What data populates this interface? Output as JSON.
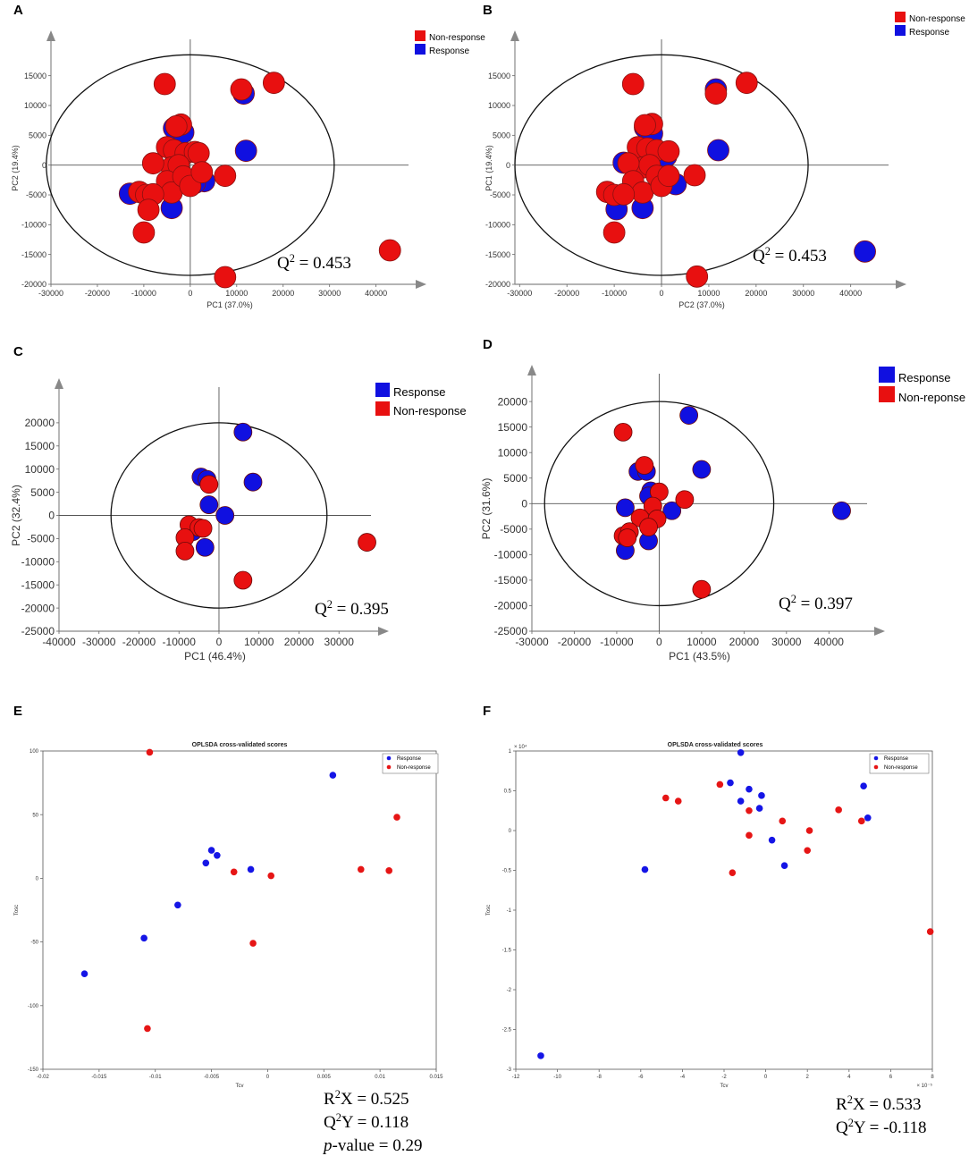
{
  "figure": {
    "panel_labels": [
      "A",
      "B",
      "C",
      "D",
      "E",
      "F"
    ]
  },
  "chart_data": [
    {
      "panel": "A",
      "type": "scatter",
      "title": "",
      "xlabel": "PC1 (37.0%)",
      "ylabel": "PC2 (19.4%)",
      "xlim": [
        -30000,
        47000
      ],
      "ylim": [
        -20000,
        19000
      ],
      "xticks": [
        -30000,
        -20000,
        -10000,
        0,
        10000,
        20000,
        30000,
        40000
      ],
      "yticks": [
        -20000,
        -15000,
        -10000,
        -5000,
        0,
        5000,
        10000,
        15000
      ],
      "tick_labels_x": [
        "-30000",
        "-20000",
        "-10000",
        "0",
        "10000",
        "20000",
        "30000",
        "40000"
      ],
      "tick_labels_y": [
        "-20000",
        "-15000",
        "-10000",
        "-5000",
        "0",
        "5000",
        "10000",
        "15000"
      ],
      "ellipse": {
        "rx": 31000,
        "ry": 18500
      },
      "legend": {
        "position": "top-right",
        "order": [
          "Non-response",
          "Response"
        ],
        "labels": [
          "Non-response",
          "Response"
        ]
      },
      "annotation": "Q² = 0.453",
      "series": [
        {
          "name": "Response",
          "color": "#1010e0",
          "points": [
            [
              11500,
              12000
            ],
            [
              12000,
              2400
            ],
            [
              -3500,
              6200
            ],
            [
              -1500,
              5500
            ],
            [
              -2500,
              -300
            ],
            [
              -4000,
              -7200
            ],
            [
              3000,
              -2700
            ],
            [
              -13000,
              -4800
            ],
            [
              1000,
              -3000
            ]
          ]
        },
        {
          "name": "Non-response",
          "color": "#e81010",
          "points": [
            [
              -5500,
              13600
            ],
            [
              11000,
              12700
            ],
            [
              18000,
              13800
            ],
            [
              -2000,
              6800
            ],
            [
              -3000,
              6500
            ],
            [
              -5000,
              3000
            ],
            [
              -3500,
              2500
            ],
            [
              -1000,
              2000
            ],
            [
              1000,
              2200
            ],
            [
              1800,
              2000
            ],
            [
              -4000,
              -400
            ],
            [
              -2500,
              0
            ],
            [
              -8000,
              300
            ],
            [
              -5000,
              -2700
            ],
            [
              -4000,
              -4600
            ],
            [
              -11000,
              -4500
            ],
            [
              -9500,
              -5000
            ],
            [
              -8000,
              -4900
            ],
            [
              -9000,
              -7500
            ],
            [
              -10000,
              -11300
            ],
            [
              -1500,
              -1900
            ],
            [
              0,
              -3500
            ],
            [
              2500,
              -1200
            ],
            [
              7500,
              -1800
            ],
            [
              7500,
              -18800
            ],
            [
              43000,
              -14300
            ]
          ]
        }
      ]
    },
    {
      "panel": "B",
      "type": "scatter",
      "title": "",
      "xlabel": "PC2 (37.0%)",
      "ylabel": "PC1 (19.4%)",
      "xlim": [
        -31000,
        48000
      ],
      "ylim": [
        -20000,
        19000
      ],
      "xticks": [
        -30000,
        -20000,
        -10000,
        0,
        10000,
        20000,
        30000,
        40000
      ],
      "yticks": [
        -20000,
        -15000,
        -10000,
        -5000,
        0,
        5000,
        10000,
        15000
      ],
      "tick_labels_x": [
        "-30000",
        "-20000",
        "-10000",
        "0",
        "10000",
        "20000",
        "30000",
        "40000"
      ],
      "tick_labels_y": [
        "-20000",
        "-15000",
        "-10000",
        "-5000",
        "0",
        "5000",
        "10000",
        "15000"
      ],
      "ellipse": {
        "rx": 31000,
        "ry": 18500
      },
      "legend": {
        "position": "top-right",
        "order": [
          "Non-response",
          "Response"
        ],
        "labels": [
          "Non-response",
          "Response"
        ]
      },
      "annotation": "Q² = 0.453",
      "series": [
        {
          "name": "Response",
          "color": "#1010e0",
          "points": [
            [
              11500,
              12700
            ],
            [
              12000,
              2500
            ],
            [
              -3500,
              6300
            ],
            [
              -2000,
              5300
            ],
            [
              -8000,
              400
            ],
            [
              -9500,
              -7400
            ],
            [
              -4000,
              -7200
            ],
            [
              -1000,
              2000
            ],
            [
              -2500,
              900
            ],
            [
              1000,
              1500
            ],
            [
              3000,
              -3200
            ],
            [
              43000,
              -14500
            ]
          ]
        },
        {
          "name": "Non-response",
          "color": "#e81010",
          "points": [
            [
              -6000,
              13600
            ],
            [
              11500,
              12000
            ],
            [
              18000,
              13800
            ],
            [
              -2000,
              6900
            ],
            [
              -3500,
              6700
            ],
            [
              -5000,
              3000
            ],
            [
              -3000,
              2800
            ],
            [
              -1000,
              2500
            ],
            [
              1500,
              2300
            ],
            [
              -4000,
              -400
            ],
            [
              -2500,
              0
            ],
            [
              -7000,
              300
            ],
            [
              -6000,
              -2700
            ],
            [
              -4000,
              -4600
            ],
            [
              -11500,
              -4500
            ],
            [
              -10000,
              -5000
            ],
            [
              -8000,
              -4900
            ],
            [
              -10000,
              -11300
            ],
            [
              -1000,
              -1800
            ],
            [
              0,
              -3500
            ],
            [
              1500,
              -1800
            ],
            [
              7000,
              -1700
            ],
            [
              7500,
              -18700
            ]
          ]
        }
      ]
    },
    {
      "panel": "C",
      "type": "scatter",
      "title": "",
      "xlabel": "PC1 (46.4%)",
      "ylabel": "PC2 (32.4%)",
      "xlim": [
        -40000,
        38000
      ],
      "ylim": [
        -25000,
        25000
      ],
      "xticks": [
        -40000,
        -30000,
        -20000,
        -10000,
        0,
        10000,
        20000,
        30000
      ],
      "yticks": [
        -25000,
        -20000,
        -15000,
        -10000,
        -5000,
        0,
        5000,
        10000,
        15000,
        20000
      ],
      "tick_labels_x": [
        "-40000",
        "-30000",
        "-20000",
        "-10000",
        "0",
        "10000",
        "20000",
        "30000"
      ],
      "tick_labels_y": [
        "-25000",
        "-20000",
        "-15000",
        "-10000",
        "-5000",
        "0",
        "5000",
        "10000",
        "15000",
        "20000"
      ],
      "ellipse": {
        "rx": 27000,
        "ry": 20000
      },
      "legend": {
        "position": "top-right",
        "order": [
          "Response",
          "Non-response"
        ],
        "labels": [
          "Response",
          "Non-response"
        ]
      },
      "annotation": "Q² = 0.395",
      "series": [
        {
          "name": "Response",
          "color": "#1010e0",
          "points": [
            [
              6000,
              18000
            ],
            [
              8500,
              7200
            ],
            [
              -4500,
              8300
            ],
            [
              -3000,
              7800
            ],
            [
              -2500,
              2300
            ],
            [
              1500,
              0
            ],
            [
              -6500,
              -3500
            ],
            [
              -3500,
              -6900
            ]
          ]
        },
        {
          "name": "Non-response",
          "color": "#e81010",
          "points": [
            [
              -2500,
              6700
            ],
            [
              -7500,
              -2000
            ],
            [
              -5000,
              -2600
            ],
            [
              -4000,
              -2800
            ],
            [
              -8500,
              -4800
            ],
            [
              -8500,
              -7700
            ],
            [
              6000,
              -14000
            ],
            [
              37000,
              -5800
            ]
          ]
        }
      ]
    },
    {
      "panel": "D",
      "type": "scatter",
      "title": "",
      "xlabel": "PC1 (43.5%)",
      "ylabel": "PC2 (31.6%)",
      "xlim": [
        -30000,
        49000
      ],
      "ylim": [
        -25000,
        23000
      ],
      "xticks": [
        -30000,
        -20000,
        -10000,
        0,
        10000,
        20000,
        30000,
        40000
      ],
      "yticks": [
        -25000,
        -20000,
        -15000,
        -10000,
        -5000,
        0,
        5000,
        10000,
        15000,
        20000
      ],
      "tick_labels_x": [
        "-30000",
        "-20000",
        "-10000",
        "0",
        "10000",
        "20000",
        "30000",
        "40000"
      ],
      "tick_labels_y": [
        "-25000",
        "-20000",
        "-15000",
        "-10000",
        "-5000",
        "0",
        "5000",
        "10000",
        "15000",
        "20000"
      ],
      "ellipse": {
        "rx": 27000,
        "ry": 20000
      },
      "legend": {
        "position": "top-right",
        "order": [
          "Response",
          "Non-reponse"
        ],
        "labels": [
          "Response",
          "Non-reponse"
        ]
      },
      "annotation": "Q² = 0.397",
      "series": [
        {
          "name": "Response",
          "color": "#1010e0",
          "points": [
            [
              7000,
              17300
            ],
            [
              10000,
              6700
            ],
            [
              -5000,
              6300
            ],
            [
              -3000,
              6300
            ],
            [
              -2000,
              2500
            ],
            [
              -2500,
              1500
            ],
            [
              -8000,
              -800
            ],
            [
              3000,
              -1400
            ],
            [
              -8000,
              -9200
            ],
            [
              -2500,
              -7300
            ],
            [
              43000,
              -1400
            ]
          ]
        },
        {
          "name": "Non-response",
          "color": "#e81010",
          "points": [
            [
              -8500,
              14000
            ],
            [
              -3500,
              7500
            ],
            [
              0,
              2300
            ],
            [
              6000,
              800
            ],
            [
              -1500,
              -500
            ],
            [
              -4500,
              -2800
            ],
            [
              -500,
              -3000
            ],
            [
              -2500,
              -4600
            ],
            [
              -8500,
              -6300
            ],
            [
              -7000,
              -5500
            ],
            [
              -7500,
              -6700
            ],
            [
              10000,
              -16800
            ]
          ]
        }
      ]
    },
    {
      "panel": "E",
      "type": "scatter",
      "title": "OPLSDA cross-validated scores",
      "xlabel": "Tcv",
      "ylabel": "Tosc",
      "xlim": [
        -0.02,
        0.015
      ],
      "ylim": [
        -150,
        100
      ],
      "xticks": [
        -0.02,
        -0.015,
        -0.01,
        -0.005,
        0,
        0.005,
        0.01,
        0.015
      ],
      "yticks": [
        -150,
        -100,
        -50,
        0,
        50,
        100
      ],
      "tick_labels_x": [
        "-0.02",
        "-0.015",
        "-0.01",
        "-0.005",
        "0",
        "0.005",
        "0.01",
        "0.015"
      ],
      "tick_labels_y": [
        "-150",
        "-100",
        "-50",
        "0",
        "50",
        "100"
      ],
      "legend": {
        "position": "top-right",
        "order": [
          "Response",
          "Non-response"
        ],
        "labels": [
          "Response",
          "Non-response"
        ]
      },
      "stats": [
        "R²X = 0.525",
        "Q²Y = 0.118",
        "p-value = 0.29"
      ],
      "series": [
        {
          "name": "Response",
          "color": "#1515e6",
          "points": [
            [
              0.0058,
              81
            ],
            [
              -0.005,
              22
            ],
            [
              -0.0045,
              18
            ],
            [
              -0.0055,
              12
            ],
            [
              -0.0015,
              7
            ],
            [
              -0.008,
              -21
            ],
            [
              -0.011,
              -47
            ],
            [
              -0.0163,
              -75
            ]
          ]
        },
        {
          "name": "Non-response",
          "color": "#e61515",
          "points": [
            [
              -0.0105,
              99
            ],
            [
              0.0115,
              48
            ],
            [
              -0.003,
              5
            ],
            [
              0.0003,
              2
            ],
            [
              0.0083,
              7
            ],
            [
              0.0108,
              6
            ],
            [
              -0.0013,
              -51
            ],
            [
              -0.0107,
              -118
            ]
          ]
        }
      ]
    },
    {
      "panel": "F",
      "type": "scatter",
      "title": "OPLSDA cross-validated scores",
      "xlabel": "Tcv",
      "ylabel": "Tosc",
      "xlim": [
        -12,
        8
      ],
      "ylim": [
        -3,
        1
      ],
      "x_scale": "× 10⁻⁵",
      "y_scale": "× 10⁴",
      "xticks": [
        -12,
        -10,
        -8,
        -6,
        -4,
        -2,
        0,
        2,
        4,
        6,
        8
      ],
      "yticks": [
        -3,
        -2.5,
        -2,
        -1.5,
        -1,
        -0.5,
        0,
        0.5,
        1
      ],
      "tick_labels_x": [
        "-12",
        "-10",
        "-8",
        "-6",
        "-4",
        "-2",
        "0",
        "2",
        "4",
        "6",
        "8"
      ],
      "tick_labels_y": [
        "-3",
        "-2.5",
        "-2",
        "-1.5",
        "-1",
        "-0.5",
        "0",
        "0.5",
        "1"
      ],
      "legend": {
        "position": "top-right",
        "order": [
          "Response",
          "Non-response"
        ],
        "labels": [
          "Response",
          "Non-response"
        ]
      },
      "stats": [
        "R²X = 0.533",
        "Q²Y = -0.118"
      ],
      "series": [
        {
          "name": "Response",
          "color": "#1515e6",
          "points": [
            [
              -1.2,
              0.98
            ],
            [
              -1.7,
              0.6
            ],
            [
              -0.8,
              0.52
            ],
            [
              -0.2,
              0.44
            ],
            [
              -1.2,
              0.37
            ],
            [
              -0.3,
              0.28
            ],
            [
              0.3,
              -0.12
            ],
            [
              0.9,
              -0.44
            ],
            [
              -5.8,
              -0.49
            ],
            [
              4.7,
              0.56
            ],
            [
              4.9,
              0.16
            ],
            [
              -10.8,
              -2.83
            ]
          ]
        },
        {
          "name": "Non-response",
          "color": "#e61515",
          "points": [
            [
              -4.8,
              0.41
            ],
            [
              -4.2,
              0.37
            ],
            [
              -2.2,
              0.58
            ],
            [
              -0.8,
              0.25
            ],
            [
              -0.8,
              -0.06
            ],
            [
              0.8,
              0.12
            ],
            [
              2.1,
              0
            ],
            [
              3.5,
              0.26
            ],
            [
              4.6,
              0.12
            ],
            [
              -1.6,
              -0.53
            ],
            [
              2.0,
              -0.25
            ],
            [
              7.9,
              -1.27
            ]
          ]
        }
      ]
    }
  ]
}
